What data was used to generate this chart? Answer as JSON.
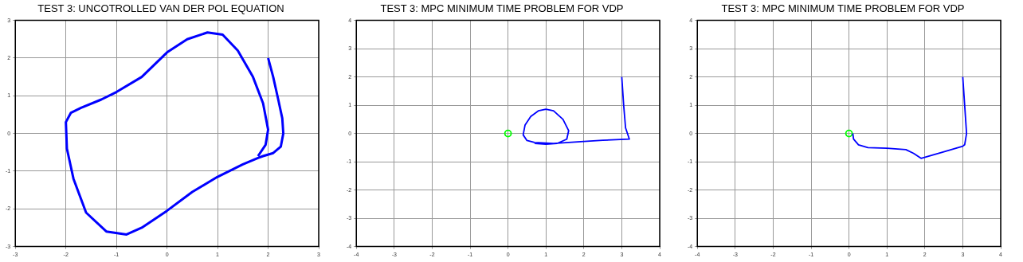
{
  "chart_data": [
    {
      "type": "line",
      "title": "TEST 3: UNCOTROLLED VAN DER POL EQUATION",
      "xlim": [
        -3,
        3
      ],
      "ylim": [
        -3,
        3
      ],
      "xticks": [
        -3,
        -2,
        -1,
        0,
        1,
        2,
        3
      ],
      "yticks": [
        -3,
        -2,
        -1,
        0,
        1,
        2,
        3
      ],
      "grid": true,
      "legend": false,
      "marker": "none",
      "line_style": "solid",
      "series": [
        {
          "color": "#0000ff",
          "x": [
            2,
            2.1,
            2.2,
            2.28,
            2.3,
            2.25,
            2.1,
            1.9,
            1.8,
            1.5,
            1.0,
            0.5,
            0,
            -0.5,
            -0.8,
            -1.2,
            -1.6,
            -1.85,
            -1.98,
            -2,
            -1.9,
            -1.7,
            -1.3,
            -1,
            -0.5,
            0,
            0.4,
            0.8,
            1.1,
            1.4,
            1.7,
            1.9,
            2.0,
            1.95,
            1.8
          ],
          "values": [
            2,
            1.5,
            0.9,
            0.4,
            0,
            -0.35,
            -0.52,
            -0.6,
            -0.65,
            -0.82,
            -1.15,
            -1.55,
            -2.05,
            -2.5,
            -2.68,
            -2.6,
            -2.1,
            -1.2,
            -0.4,
            0.3,
            0.55,
            0.68,
            0.9,
            1.1,
            1.5,
            2.15,
            2.5,
            2.68,
            2.62,
            2.2,
            1.5,
            0.8,
            0.1,
            -0.3,
            -0.6
          ]
        }
      ]
    },
    {
      "type": "line",
      "title": "TEST 3: MPC MINIMUM TIME PROBLEM FOR VDP",
      "xlim": [
        -4,
        4
      ],
      "ylim": [
        -4,
        4
      ],
      "xticks": [
        -4,
        -3,
        -2,
        -1,
        0,
        1,
        2,
        3,
        4
      ],
      "yticks": [
        -4,
        -3,
        -2,
        -1,
        0,
        1,
        2,
        3,
        4
      ],
      "grid": true,
      "legend": false,
      "marker": "none",
      "line_style": "solid",
      "series": [
        {
          "color": "#0000ff",
          "x": [
            3,
            3.05,
            3.1,
            3.2,
            2.5,
            2,
            1.2,
            0.7,
            0.5,
            0.4,
            0.45,
            0.6,
            0.8,
            1.0,
            1.2,
            1.45,
            1.6,
            1.55,
            1.3,
            1.0,
            0.7
          ],
          "values": [
            2,
            1,
            0.2,
            -0.2,
            -0.24,
            -0.28,
            -0.35,
            -0.32,
            -0.25,
            -0.05,
            0.3,
            0.6,
            0.8,
            0.86,
            0.8,
            0.5,
            0.1,
            -0.2,
            -0.35,
            -0.38,
            -0.35
          ]
        },
        {
          "type": "scatter",
          "marker": "circle",
          "color": "#00ff00",
          "x": [
            0
          ],
          "values": [
            0
          ]
        }
      ]
    },
    {
      "type": "line",
      "title": "TEST 3: MPC MINIMUM TIME PROBLEM FOR VDP",
      "xlim": [
        -4,
        4
      ],
      "ylim": [
        -4,
        4
      ],
      "xticks": [
        -4,
        -3,
        -2,
        -1,
        0,
        1,
        2,
        3,
        4
      ],
      "yticks": [
        -4,
        -3,
        -2,
        -1,
        0,
        1,
        2,
        3,
        4
      ],
      "grid": true,
      "legend": false,
      "marker": "none",
      "line_style": "solid",
      "series": [
        {
          "color": "#0000ff",
          "x": [
            3,
            3.05,
            3.1,
            3.05,
            3,
            2.5,
            1.9,
            1.7,
            1.5,
            1,
            0.5,
            0.25,
            0.12,
            0.1
          ],
          "values": [
            2,
            1,
            0,
            -0.4,
            -0.45,
            -0.65,
            -0.88,
            -0.7,
            -0.57,
            -0.52,
            -0.5,
            -0.4,
            -0.2,
            0
          ]
        },
        {
          "type": "scatter",
          "marker": "circle",
          "color": "#00ff00",
          "x": [
            0
          ],
          "values": [
            0
          ]
        }
      ]
    }
  ]
}
